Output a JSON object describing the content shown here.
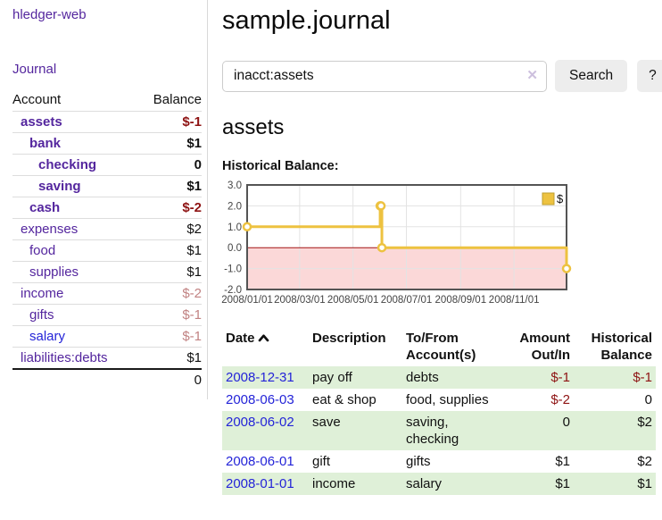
{
  "colors": {
    "link_purple": "#54269E",
    "link_blue": "#2424D8",
    "negative": "#8E1313",
    "negative_muted": "#C18282",
    "stripe_green": "#DFF0D8",
    "accent_gold": "#EDC240",
    "negative_region": "#FBD8D8",
    "zero_line": "#A11212",
    "grid_line": "#E3E3E3",
    "plot_border": "#545454"
  },
  "sidebar": {
    "app_title": "hledger-web",
    "journal_link": "Journal",
    "accounts": {
      "header_account": "Account",
      "header_balance": "Balance",
      "rows": [
        {
          "name": "assets",
          "indent": 1,
          "bold": true,
          "link_style": "purple",
          "balance": "$-1",
          "balance_style": "negative"
        },
        {
          "name": "bank",
          "indent": 2,
          "bold": true,
          "link_style": "purple",
          "balance": "$1",
          "balance_style": "normal"
        },
        {
          "name": "checking",
          "indent": 3,
          "bold": true,
          "link_style": "purple",
          "balance": "0",
          "balance_style": "normal"
        },
        {
          "name": "saving",
          "indent": 3,
          "bold": true,
          "link_style": "purple",
          "balance": "$1",
          "balance_style": "normal"
        },
        {
          "name": "cash",
          "indent": 2,
          "bold": true,
          "link_style": "purple",
          "balance": "$-2",
          "balance_style": "negative"
        },
        {
          "name": "expenses",
          "indent": 1,
          "bold": false,
          "link_style": "purple",
          "balance": "$2",
          "balance_style": "normal"
        },
        {
          "name": "food",
          "indent": 2,
          "bold": false,
          "link_style": "purple",
          "balance": "$1",
          "balance_style": "normal"
        },
        {
          "name": "supplies",
          "indent": 2,
          "bold": false,
          "link_style": "purple",
          "balance": "$1",
          "balance_style": "normal"
        },
        {
          "name": "income",
          "indent": 1,
          "bold": false,
          "link_style": "purple",
          "balance": "$-2",
          "balance_style": "negative-muted"
        },
        {
          "name": "gifts",
          "indent": 2,
          "bold": false,
          "link_style": "purple",
          "balance": "$-1",
          "balance_style": "negative-muted"
        },
        {
          "name": "salary",
          "indent": 2,
          "bold": false,
          "link_style": "blue",
          "balance": "$-1",
          "balance_style": "negative-muted"
        },
        {
          "name": "liabilities:debts",
          "indent": 1,
          "bold": false,
          "link_style": "purple",
          "balance": "$1",
          "balance_style": "normal"
        }
      ],
      "total": "0"
    }
  },
  "main": {
    "page_title": "sample.journal",
    "search": {
      "value": "inacct:assets",
      "clear_icon": "✕",
      "search_button": "Search",
      "help_button": "?"
    },
    "account_heading": "assets",
    "chart_title": "Historical Balance:"
  },
  "chart_data": {
    "type": "line",
    "title": "Historical Balance",
    "steps": true,
    "series": [
      {
        "name": "$",
        "color": "#EDC240",
        "points": [
          [
            "2008/01/01",
            1
          ],
          [
            "2008/06/01",
            2
          ],
          [
            "2008/06/02",
            2
          ],
          [
            "2008/06/03",
            0
          ],
          [
            "2008/12/31",
            -1
          ]
        ]
      }
    ],
    "xlim": [
      "2008/01/01",
      "2008/12/31"
    ],
    "ylim": [
      -2,
      3
    ],
    "x_ticks": [
      "2008/01/01",
      "2008/03/01",
      "2008/05/01",
      "2008/07/01",
      "2008/09/01",
      "2008/11/01"
    ],
    "y_ticks": [
      3.0,
      2.0,
      1.0,
      0.0,
      -1.0,
      -2.0
    ],
    "legend_position": "top-right",
    "grid": true
  },
  "register": {
    "headers": {
      "date": "Date",
      "description": "Description",
      "accounts": "To/From\nAccount(s)",
      "amount": "Amount\nOut/In",
      "balance": "Historical\nBalance"
    },
    "rows": [
      {
        "date": "2008-12-31",
        "description": "pay off",
        "accounts": "debts",
        "amount": "$-1",
        "amount_style": "negative",
        "balance": "$-1",
        "balance_style": "negative"
      },
      {
        "date": "2008-06-03",
        "description": "eat & shop",
        "accounts": "food, supplies",
        "amount": "$-2",
        "amount_style": "negative",
        "balance": "0",
        "balance_style": "normal"
      },
      {
        "date": "2008-06-02",
        "description": "save",
        "accounts": "saving, checking",
        "amount": "0",
        "amount_style": "normal",
        "balance": "$2",
        "balance_style": "normal"
      },
      {
        "date": "2008-06-01",
        "description": "gift",
        "accounts": "gifts",
        "amount": "$1",
        "amount_style": "normal",
        "balance": "$2",
        "balance_style": "normal"
      },
      {
        "date": "2008-01-01",
        "description": "income",
        "accounts": "salary",
        "amount": "$1",
        "amount_style": "normal",
        "balance": "$1",
        "balance_style": "normal"
      }
    ]
  }
}
